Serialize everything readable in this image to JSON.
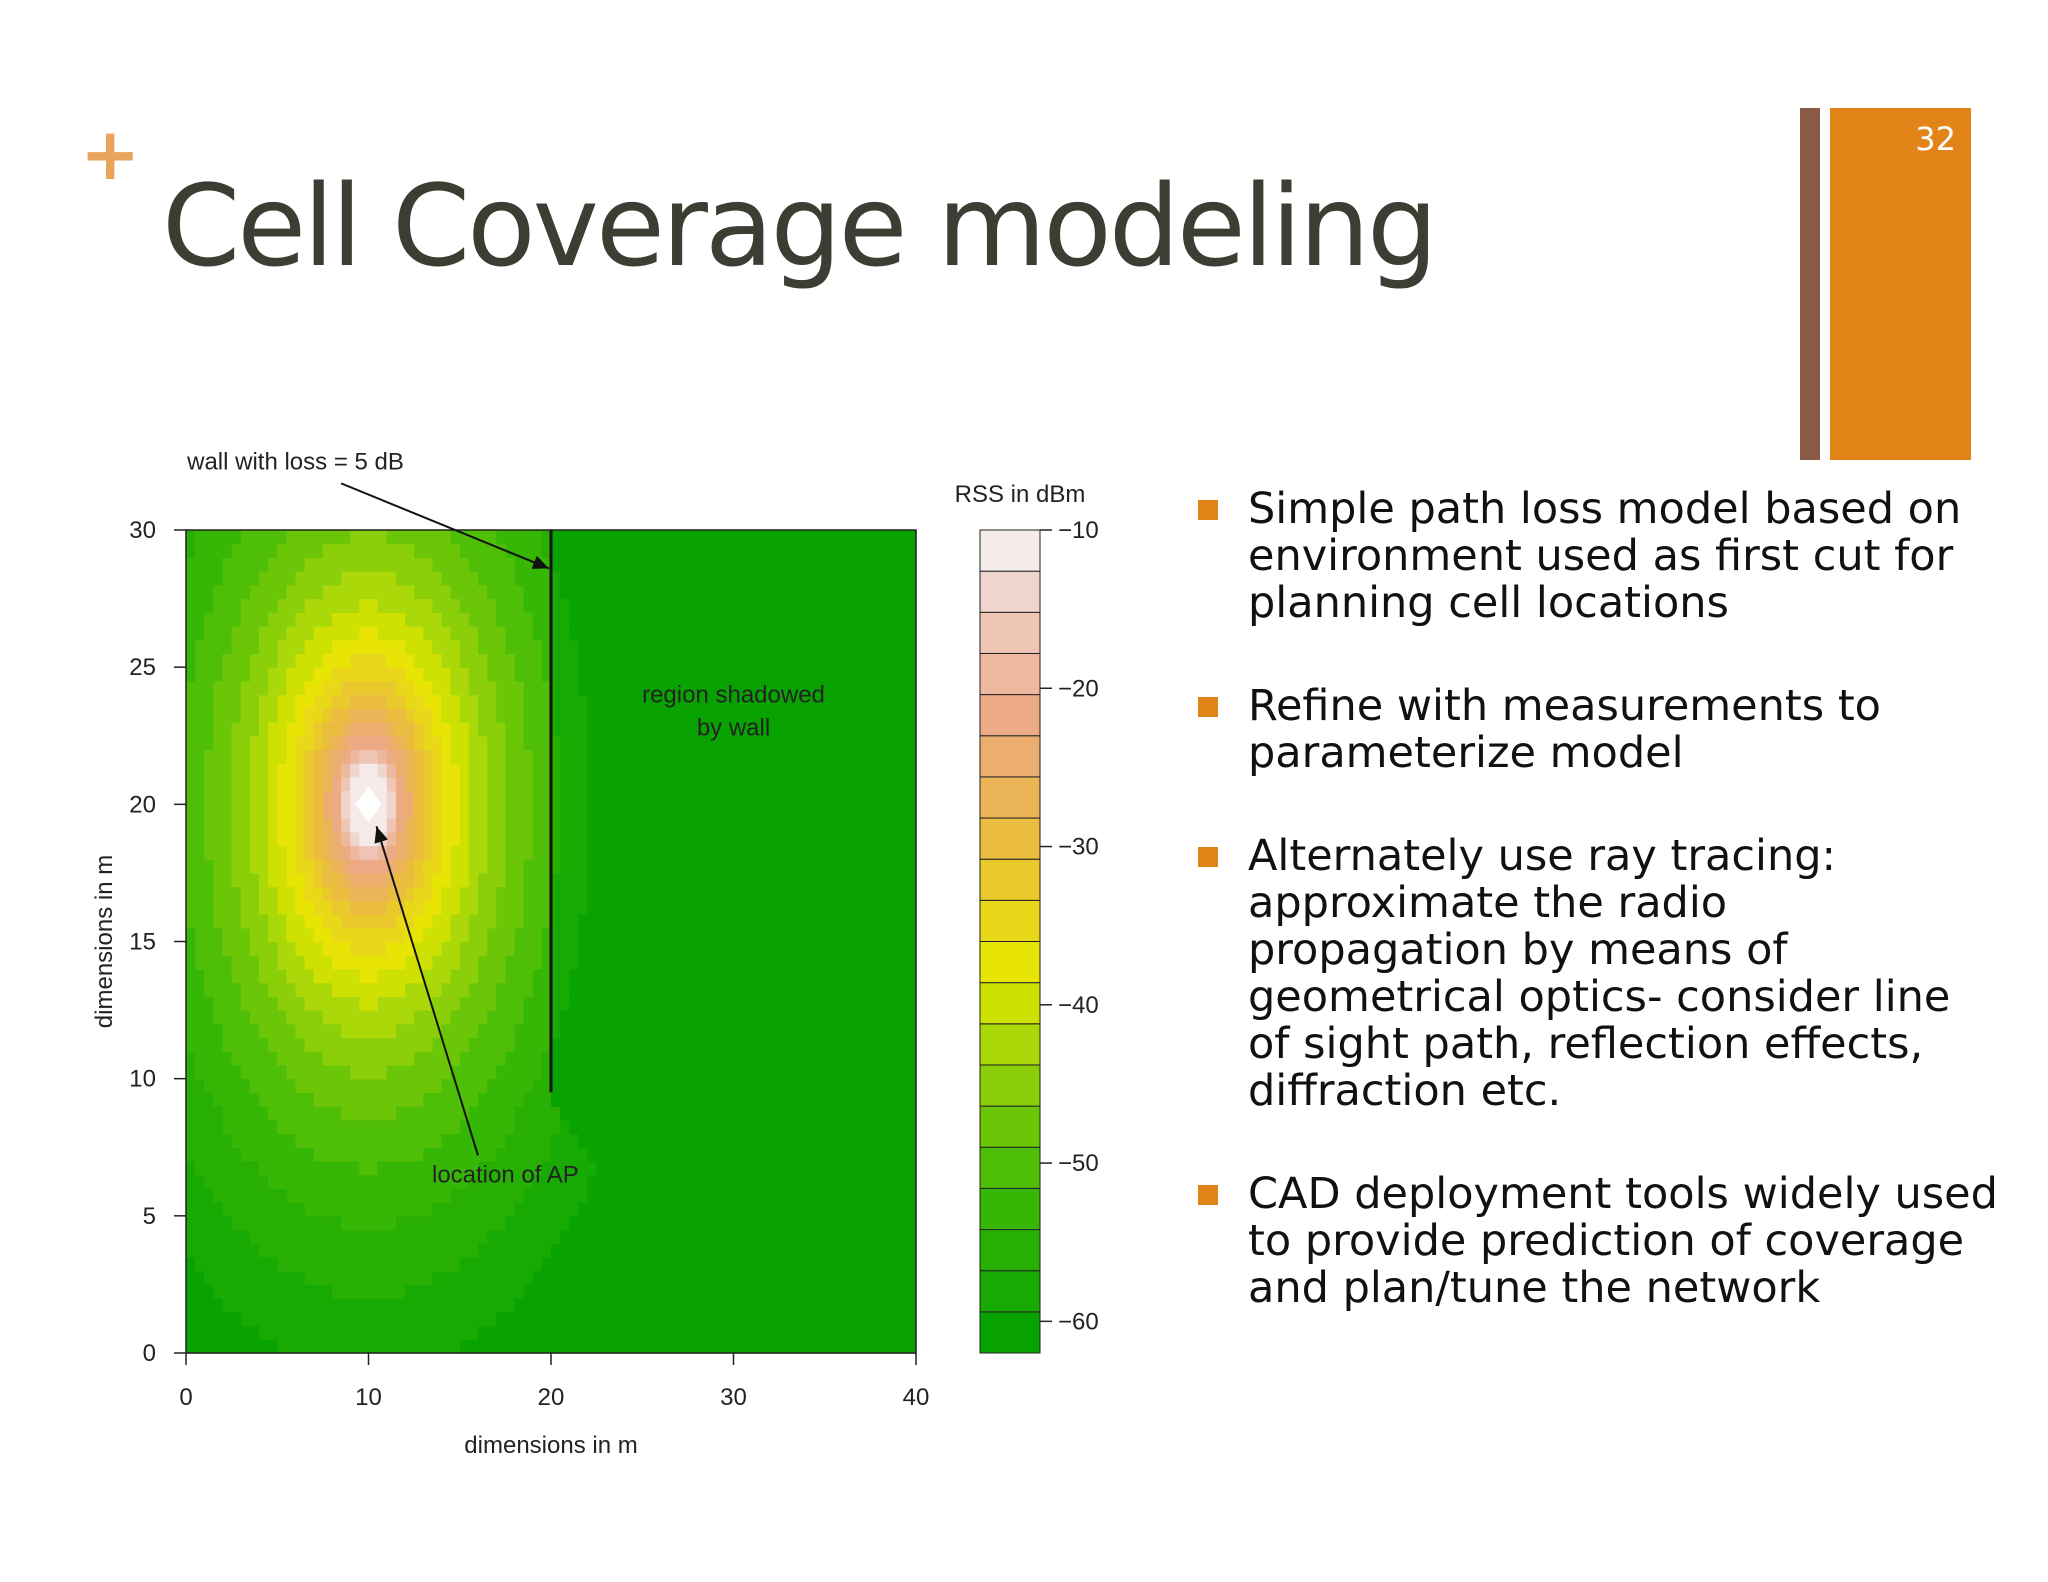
{
  "slide": {
    "plus_glyph": "+",
    "title": "Cell Coverage modeling",
    "page_number": "32",
    "accent_color": "#e38419",
    "secondary_color": "#8a5a45"
  },
  "bullets": [
    "Simple path loss model based on environment used as first cut for planning cell locations",
    "Refine with measurements  to parameterize model",
    "Alternately use ray tracing: approximate the radio propagation by means of geometrical optics- consider line of sight path, reflection effects, diffraction etc.",
    "CAD deployment tools widely used to provide  prediction of coverage and plan/tune the network"
  ],
  "chart_data": {
    "type": "heatmap",
    "xlabel": "dimensions in m",
    "ylabel": "dimensions in m",
    "xlim": [
      0,
      40
    ],
    "ylim": [
      0,
      30
    ],
    "x_ticks": [
      0,
      10,
      20,
      30,
      40
    ],
    "y_ticks": [
      0,
      5,
      10,
      15,
      20,
      25,
      30
    ],
    "colorbar": {
      "label": "RSS in dBm",
      "ticks": [
        -10,
        -20,
        -30,
        -40,
        -50,
        -60
      ],
      "range": [
        -62,
        -10
      ]
    },
    "access_point": {
      "x": 10,
      "y": 20
    },
    "wall": {
      "x": 20,
      "y_from": 9.5,
      "y_to": 30,
      "loss_db": 5
    },
    "annotations": [
      {
        "text": "wall with loss = 5 dB",
        "x": 6,
        "y": 32.5
      },
      {
        "text": "region shadowed",
        "x": 30,
        "y": 24
      },
      {
        "text": "by wall",
        "x": 30,
        "y": 22.8
      },
      {
        "text": "location of AP",
        "x": 17.5,
        "y": 6.5
      }
    ]
  }
}
